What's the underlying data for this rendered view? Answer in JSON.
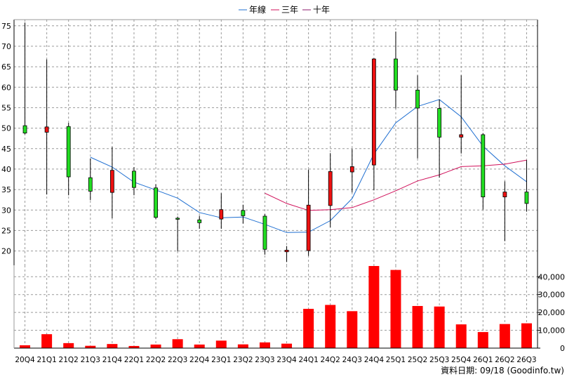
{
  "chart_data": {
    "type": "candlestick",
    "legend": [
      {
        "name": "年線",
        "color": "#1f6fd1"
      },
      {
        "name": "三年",
        "color": "#d0105a"
      },
      {
        "name": "十年",
        "color": "#8b1a6b"
      }
    ],
    "categories": [
      "20Q4",
      "21Q1",
      "21Q2",
      "21Q3",
      "21Q4",
      "22Q1",
      "22Q2",
      "22Q3",
      "22Q4",
      "23Q1",
      "23Q2",
      "23Q3",
      "23Q4",
      "24Q1",
      "24Q2",
      "24Q3",
      "24Q4",
      "25Q1",
      "25Q2",
      "25Q3",
      "25Q4",
      "26Q1",
      "26Q2",
      "26Q3"
    ],
    "price_axis": {
      "ylim": [
        16.5,
        76.5
      ],
      "ticks": [
        20,
        25,
        30,
        35,
        40,
        45,
        50,
        55,
        60,
        65,
        70,
        75
      ]
    },
    "volume_axis": {
      "ylim": [
        0,
        46000
      ],
      "ticks": [
        0,
        10000,
        20000,
        30000,
        40000
      ],
      "tick_labels": [
        "0",
        "10,000",
        "20,000",
        "30,000",
        "40,000"
      ]
    },
    "candles": [
      {
        "open": 48.8,
        "close": 50.6,
        "high": 75.8,
        "low": 48.5
      },
      {
        "open": 50.3,
        "close": 49.0,
        "high": 66.8,
        "low": 33.8
      },
      {
        "open": 38.1,
        "close": 50.4,
        "high": 51.3,
        "low": 33.6
      },
      {
        "open": 34.6,
        "close": 37.9,
        "high": 42.6,
        "low": 32.4
      },
      {
        "open": 39.7,
        "close": 34.3,
        "high": 45.4,
        "low": 28.0
      },
      {
        "open": 35.5,
        "close": 39.5,
        "high": 40.5,
        "low": 33.6
      },
      {
        "open": 28.2,
        "close": 35.4,
        "high": 36.3,
        "low": 27.8
      },
      {
        "open": 28.0,
        "close": 28.0,
        "high": 28.4,
        "low": 19.9
      },
      {
        "open": 26.9,
        "close": 27.6,
        "high": 28.6,
        "low": 25.4
      },
      {
        "open": 30.1,
        "close": 27.8,
        "high": 34.1,
        "low": 25.4
      },
      {
        "open": 28.6,
        "close": 29.9,
        "high": 31.3,
        "low": 26.7
      },
      {
        "open": 20.4,
        "close": 28.5,
        "high": 29.0,
        "low": 19.1
      },
      {
        "open": 20.2,
        "close": 19.8,
        "high": 21.2,
        "low": 17.3
      },
      {
        "open": 31.2,
        "close": 20.1,
        "high": 39.9,
        "low": 18.8
      },
      {
        "open": 39.4,
        "close": 31.1,
        "high": 43.9,
        "low": 25.8
      },
      {
        "open": 40.6,
        "close": 39.3,
        "high": 44.9,
        "low": 34.3
      },
      {
        "open": 66.9,
        "close": 41.0,
        "high": 67.1,
        "low": 34.8
      },
      {
        "open": 59.3,
        "close": 66.9,
        "high": 73.6,
        "low": 54.8
      },
      {
        "open": 54.9,
        "close": 59.3,
        "high": 62.9,
        "low": 42.6
      },
      {
        "open": 47.8,
        "close": 54.8,
        "high": 57.0,
        "low": 37.9
      },
      {
        "open": 48.4,
        "close": 47.8,
        "high": 62.9,
        "low": 43.8
      },
      {
        "open": 33.2,
        "close": 48.4,
        "high": 48.8,
        "low": 30.1
      },
      {
        "open": 34.4,
        "close": 33.2,
        "high": 37.0,
        "low": 22.4
      },
      {
        "open": 31.6,
        "close": 34.4,
        "high": 42.2,
        "low": 29.6
      }
    ],
    "series": [
      {
        "name": "年線",
        "x": [
          "21Q3",
          "21Q4",
          "22Q1",
          "22Q2",
          "22Q3",
          "22Q4",
          "23Q1",
          "23Q2",
          "23Q3",
          "23Q4",
          "24Q1",
          "24Q2",
          "24Q3",
          "24Q4",
          "25Q1",
          "25Q2",
          "25Q3",
          "25Q4",
          "26Q1",
          "26Q2",
          "26Q3"
        ],
        "values": [
          42.9,
          40.5,
          36.8,
          34.9,
          32.9,
          29.4,
          28.1,
          28.3,
          26.5,
          24.5,
          24.6,
          27.4,
          32.8,
          43.7,
          51.3,
          55.3,
          57.0,
          52.8,
          45.6,
          40.8,
          36.9
        ]
      },
      {
        "name": "三年",
        "x": [
          "23Q3",
          "23Q4",
          "24Q1",
          "24Q2",
          "24Q3",
          "24Q4",
          "25Q1",
          "25Q2",
          "25Q3",
          "25Q4",
          "26Q1",
          "26Q2",
          "26Q3"
        ],
        "values": [
          34.1,
          31.6,
          29.9,
          30.1,
          30.6,
          32.5,
          34.7,
          37.1,
          38.6,
          40.6,
          40.8,
          41.2,
          42.2
        ]
      }
    ],
    "volume": [
      1600,
      7800,
      2800,
      1300,
      2300,
      1200,
      2000,
      5000,
      2000,
      4200,
      2100,
      3200,
      2500,
      22000,
      24200,
      20700,
      46000,
      43800,
      23600,
      23300,
      13300,
      9000,
      13500,
      13900
    ],
    "grid": true,
    "watermark": "資料日期: 09/18  (Goodinfo.tw)"
  }
}
